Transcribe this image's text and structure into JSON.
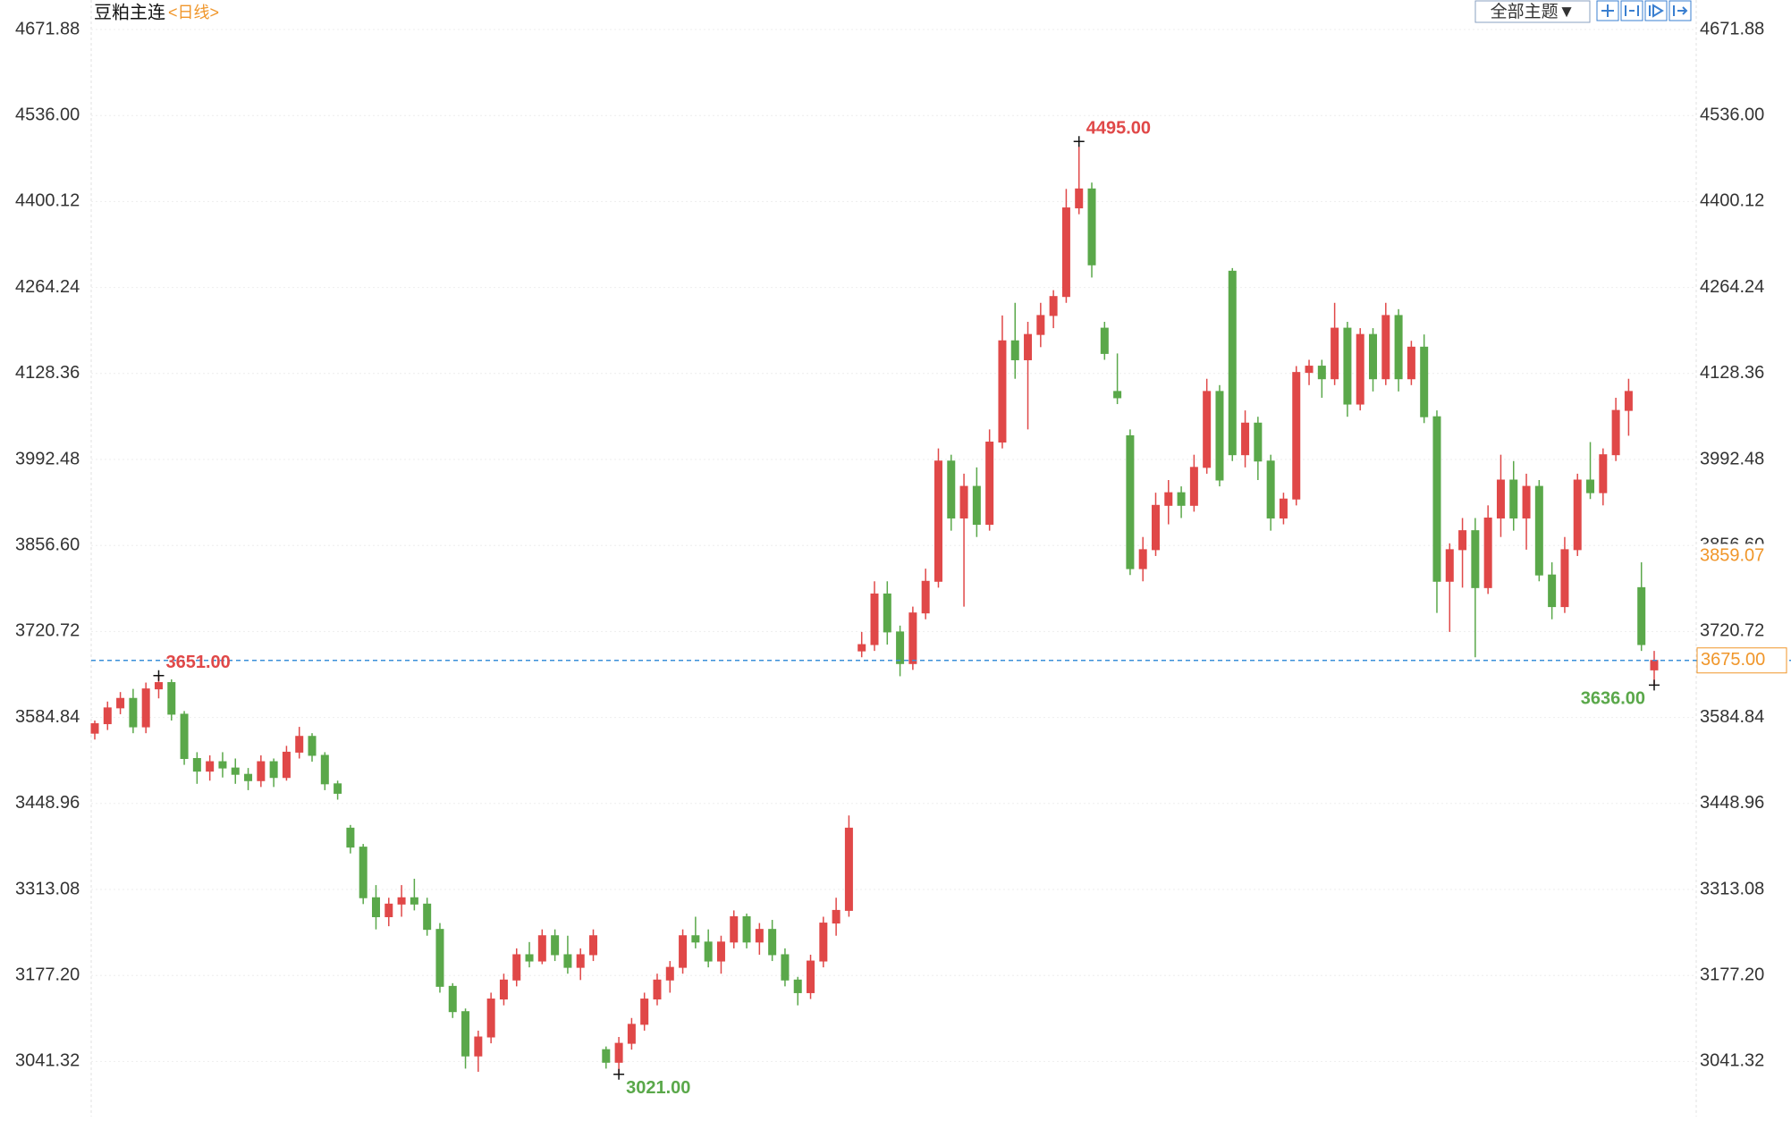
{
  "chart_data": {
    "type": "candlestick",
    "title": "豆粕主连",
    "period": "<日线>",
    "theme_button": "全部主题▼",
    "up_color": "#e04848",
    "down_color": "#5aa84a",
    "ylim": [
      2954.3,
      4718.5
    ],
    "yticks": [
      4671.88,
      {
        "value": 4536,
        "label": "4536.00"
      },
      4400.12,
      4264.24,
      4128.36,
      3992.48,
      {
        "value": 3856.6,
        "label": "3856.60"
      },
      3720.72,
      3584.84,
      3448.96,
      3313.08,
      {
        "value": 3177.2,
        "label": "3177.20"
      },
      3041.32
    ],
    "grid": true,
    "open": [
      3560,
      3575,
      3600,
      3615,
      3570,
      3630,
      3640,
      3590,
      3520,
      3500,
      3515,
      3505,
      3495,
      3485,
      3515,
      3490,
      3530,
      3555,
      3525,
      3480,
      3410,
      3380,
      3300,
      3270,
      3290,
      3300,
      3290,
      3250,
      3160,
      3120,
      3050,
      3080,
      3140,
      3170,
      3210,
      3200,
      3240,
      3210,
      3190,
      3210,
      3060,
      3040,
      3070,
      3100,
      3140,
      3170,
      3190,
      3240,
      3230,
      3200,
      3230,
      3270,
      3230,
      3250,
      3210,
      3170,
      3150,
      3200,
      3260,
      3280,
      3690,
      3700,
      3780,
      3720,
      3670,
      3750,
      3800,
      3990,
      3900,
      3950,
      3890,
      4020,
      4180,
      4150,
      4190,
      4220,
      4250,
      4390,
      4420,
      4200,
      4100,
      4030,
      3820,
      3850,
      3920,
      3940,
      3920,
      3980,
      4100,
      4290,
      4000,
      4050,
      3990,
      3900,
      3930,
      4130,
      4140,
      4120,
      4200,
      4080,
      4190,
      4120,
      4220,
      4120,
      4170,
      4060,
      3800,
      3850,
      3880,
      3790,
      3900,
      3960,
      3900,
      3950,
      3810,
      3760,
      3850,
      3960,
      3940,
      4000,
      4070,
      3790,
      3660
    ],
    "high": [
      3580,
      3610,
      3625,
      3630,
      3640,
      3651,
      3645,
      3595,
      3530,
      3525,
      3530,
      3520,
      3505,
      3525,
      3520,
      3540,
      3570,
      3560,
      3530,
      3485,
      3415,
      3385,
      3320,
      3300,
      3320,
      3330,
      3300,
      3260,
      3165,
      3125,
      3090,
      3150,
      3180,
      3220,
      3230,
      3250,
      3250,
      3240,
      3220,
      3250,
      3065,
      3080,
      3110,
      3150,
      3180,
      3200,
      3250,
      3270,
      3250,
      3240,
      3280,
      3275,
      3260,
      3265,
      3220,
      3175,
      3210,
      3270,
      3300,
      3430,
      3720,
      3800,
      3800,
      3730,
      3760,
      3820,
      4010,
      4000,
      3970,
      3980,
      4040,
      4220,
      4240,
      4210,
      4240,
      4260,
      4420,
      4495,
      4430,
      4210,
      4160,
      4040,
      3870,
      3940,
      3960,
      3950,
      4000,
      4120,
      4110,
      4295,
      4070,
      4060,
      4000,
      3940,
      4140,
      4150,
      4150,
      4240,
      4210,
      4200,
      4200,
      4240,
      4230,
      4180,
      4190,
      4070,
      3860,
      3900,
      3900,
      3920,
      4000,
      3990,
      3970,
      3960,
      3830,
      3870,
      3970,
      4020,
      4010,
      4090,
      4120,
      3830,
      3690
    ],
    "low": [
      3550,
      3565,
      3590,
      3560,
      3560,
      3615,
      3580,
      3510,
      3480,
      3485,
      3490,
      3480,
      3470,
      3475,
      3475,
      3485,
      3520,
      3515,
      3470,
      3455,
      3370,
      3290,
      3250,
      3255,
      3270,
      3280,
      3240,
      3150,
      3110,
      3030,
      3025,
      3070,
      3130,
      3160,
      3190,
      3195,
      3200,
      3180,
      3170,
      3200,
      3030,
      3021,
      3060,
      3090,
      3130,
      3150,
      3180,
      3220,
      3190,
      3180,
      3220,
      3220,
      3210,
      3200,
      3160,
      3130,
      3140,
      3190,
      3240,
      3270,
      3680,
      3690,
      3700,
      3650,
      3660,
      3740,
      3790,
      3880,
      3760,
      3870,
      3880,
      4010,
      4120,
      4040,
      4170,
      4200,
      4240,
      4380,
      4280,
      4150,
      4080,
      3810,
      3800,
      3840,
      3890,
      3900,
      3910,
      3970,
      3950,
      3990,
      3980,
      3960,
      3880,
      3890,
      3920,
      4110,
      4090,
      4110,
      4060,
      4070,
      4100,
      4110,
      4100,
      4110,
      4050,
      3750,
      3720,
      3790,
      3680,
      3780,
      3870,
      3880,
      3850,
      3800,
      3740,
      3750,
      3840,
      3930,
      3920,
      3990,
      4030,
      3690,
      3636
    ],
    "close": [
      3575,
      3600,
      3615,
      3570,
      3630,
      3640,
      3590,
      3520,
      3500,
      3515,
      3505,
      3495,
      3485,
      3515,
      3490,
      3530,
      3555,
      3525,
      3480,
      3465,
      3380,
      3300,
      3270,
      3290,
      3300,
      3290,
      3250,
      3160,
      3120,
      3050,
      3080,
      3140,
      3170,
      3210,
      3200,
      3240,
      3210,
      3190,
      3210,
      3240,
      3040,
      3070,
      3100,
      3140,
      3170,
      3190,
      3240,
      3230,
      3200,
      3230,
      3270,
      3230,
      3250,
      3210,
      3170,
      3150,
      3200,
      3260,
      3280,
      3410,
      3700,
      3780,
      3720,
      3670,
      3750,
      3800,
      3990,
      3900,
      3950,
      3890,
      4020,
      4180,
      4150,
      4190,
      4220,
      4250,
      4390,
      4420,
      4300,
      4160,
      4090,
      3820,
      3850,
      3920,
      3940,
      3920,
      3980,
      4100,
      3960,
      4000,
      4050,
      3990,
      3900,
      3930,
      4130,
      4140,
      4120,
      4200,
      4080,
      4190,
      4120,
      4220,
      4120,
      4170,
      4060,
      3800,
      3850,
      3880,
      3790,
      3900,
      3960,
      3900,
      3950,
      3810,
      3760,
      3850,
      3960,
      3940,
      4000,
      4070,
      4100,
      3700,
      3675
    ],
    "annotations": [
      {
        "value": 4495,
        "label": "4495.00",
        "color": "#e04848"
      },
      {
        "value": 3651,
        "label": "3651.00",
        "color": "#e04848"
      },
      {
        "value": 3021,
        "label": "3021.00",
        "color": "#5aa84a"
      },
      {
        "value": 3636,
        "label": "3636.00",
        "color": "#5aa84a"
      }
    ],
    "last_price": {
      "value": 3675,
      "label": "3675.00"
    },
    "marker_price": 3859.07,
    "price_color": "#f0962a",
    "last_line_color": "#3a8fd8"
  }
}
